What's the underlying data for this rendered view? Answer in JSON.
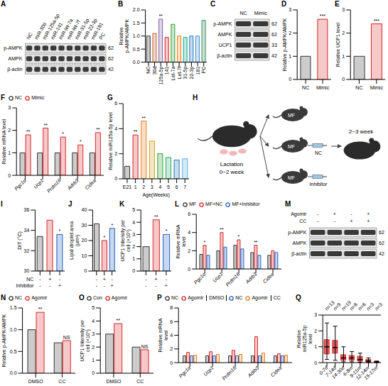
{
  "chart_data": [
    {
      "panel": "B",
      "type": "bar",
      "y_label": "Relative p-AMPK/AMPK",
      "categories": [
        "NC",
        "30d",
        "125a-5p",
        "141",
        "Let-7a",
        "Let-7f",
        "31-5p",
        "22-3p",
        "181",
        "PC"
      ],
      "values": [
        1.0,
        1.1,
        1.65,
        0.95,
        1.45,
        1.0,
        0.95,
        1.0,
        1.0,
        1.6
      ],
      "colors": [
        "#333333",
        "#c0622a",
        "#7b5ea7",
        "#d62728",
        "#2ca02c",
        "#ff7f0e",
        "#17a589",
        "#1f77b4",
        "#3e8ed0",
        "#2e8b57"
      ],
      "significance": [
        null,
        null,
        "**",
        null,
        null,
        null,
        null,
        null,
        null,
        null
      ],
      "ylim": [
        0,
        2
      ],
      "yticks": [
        {
          "value": 0,
          "label": "0.0"
        },
        {
          "value": 0.5,
          "label": "0.5"
        },
        {
          "value": 1,
          "label": "1.0"
        },
        {
          "value": 1.5,
          "label": "1.5"
        },
        {
          "value": 2,
          "label": "2.0"
        }
      ]
    },
    {
      "panel": "D",
      "type": "bar",
      "y_label": "Relative p-AMPK/AMPK",
      "categories": [
        "NC",
        "Mimic"
      ],
      "values": [
        1.0,
        2.6
      ],
      "colors": [
        "#333333",
        "#d62728"
      ],
      "significance": [
        null,
        "***"
      ],
      "ylim": [
        0,
        3
      ],
      "yticks": [
        0,
        1,
        2,
        3
      ]
    },
    {
      "panel": "E",
      "type": "bar",
      "y_label": "Relative UCP1 level",
      "categories": [
        "NC",
        "Mimic"
      ],
      "values": [
        1.0,
        2.4
      ],
      "colors": [
        "#333333",
        "#d62728"
      ],
      "significance": [
        null,
        "***"
      ],
      "ylim": [
        0,
        3
      ],
      "yticks": [
        0,
        1,
        2,
        3
      ]
    },
    {
      "panel": "F",
      "type": "bar",
      "y_label": "Relative mRNA level",
      "categories": [
        "Pgc1α",
        "Ucp1",
        "Prdm16",
        "Adrb3",
        "Cidea"
      ],
      "series": [
        {
          "name": "NC",
          "color": "#333333",
          "values": [
            1,
            1,
            1,
            1,
            1
          ]
        },
        {
          "name": "Mimic",
          "color": "#d62728",
          "values": [
            1.8,
            2.1,
            1.7,
            1.35,
            1.9
          ],
          "significance": [
            "**",
            "**",
            "*",
            "*",
            "**"
          ]
        }
      ],
      "legend": "top",
      "ylim": [
        0,
        3
      ],
      "yticks": [
        0,
        1,
        2,
        3
      ]
    },
    {
      "panel": "G",
      "type": "bar",
      "y_label": "Relative miR125a-5p level",
      "x_label": "Age(Weeks)",
      "categories": [
        "E21",
        "1",
        "2",
        "3",
        "4",
        "5",
        "6",
        "7"
      ],
      "values": [
        1.0,
        3.5,
        4.6,
        3.0,
        2.0,
        1.7,
        1.5,
        1.6
      ],
      "colors": [
        "#333333",
        "#d62728",
        "#e67e22",
        "#d4a017",
        "#2ca02c",
        "#27ae60",
        "#1f77b4",
        "#5dade2"
      ],
      "significance": [
        null,
        "**",
        "**",
        null,
        null,
        null,
        null,
        null
      ],
      "ylim": [
        0,
        6
      ],
      "yticks": [
        0,
        2,
        4,
        6
      ]
    },
    {
      "panel": "I",
      "type": "bar",
      "y_label": "DIT (°C)",
      "categories": [
        null,
        null,
        null
      ],
      "conditions": [
        {
          "name": "NC",
          "signs": [
            "-",
            "+",
            "-"
          ]
        },
        {
          "name": "Inhibitor",
          "signs": [
            "-",
            "-",
            "+"
          ]
        }
      ],
      "values": [
        33.4,
        35.0,
        33.6
      ],
      "colors": [
        "#333333",
        "#d62728",
        "#1f5fbf"
      ],
      "significance": [
        null,
        null,
        "*"
      ],
      "ylim": [
        30,
        36
      ],
      "yticks": [
        30,
        32,
        34,
        36
      ]
    },
    {
      "panel": "J",
      "type": "bar",
      "y_label": "Lipid droplet area (μm²)",
      "categories": [
        null,
        null,
        null
      ],
      "conditions": [
        {
          "signs": [
            "-",
            "+",
            "-"
          ]
        },
        {
          "signs": [
            "-",
            "-",
            "+"
          ]
        }
      ],
      "values": [
        31,
        20,
        28
      ],
      "colors": [
        "#333333",
        "#d62728",
        "#1f5fbf"
      ],
      "significance": [
        null,
        "*",
        "*"
      ],
      "ylim": [
        0,
        40
      ],
      "yticks": [
        0,
        10,
        20,
        30,
        40
      ]
    },
    {
      "panel": "K",
      "type": "bar",
      "y_label": "UCP1 Intensity per cell (×10⁵)",
      "categories": [
        null,
        null,
        null
      ],
      "conditions": [
        {
          "signs": [
            "-",
            "+",
            "-"
          ]
        },
        {
          "signs": [
            "-",
            "-",
            "+"
          ]
        }
      ],
      "values": [
        2.0,
        4.2,
        3.0
      ],
      "colors": [
        "#333333",
        "#d62728",
        "#1f5fbf"
      ],
      "significance": [
        null,
        "**",
        "*"
      ],
      "ylim": [
        0,
        5
      ],
      "yticks": [
        0,
        1,
        2,
        3,
        4,
        5
      ]
    },
    {
      "panel": "L",
      "type": "bar",
      "y_label": "Relative mRNA level",
      "categories": [
        "Pgc1α",
        "Ucp1",
        "Prdm16",
        "Adrb3",
        "Cidea"
      ],
      "series": [
        {
          "name": "MF",
          "color": "#333333",
          "values": [
            1.6,
            2.0,
            2.6,
            1.8,
            1.5
          ]
        },
        {
          "name": "MF+NC",
          "color": "#d62728",
          "values": [
            2.6,
            4.0,
            3.2,
            2.6,
            2.0
          ],
          "significance": [
            "*",
            "**",
            "*",
            "**",
            null
          ]
        },
        {
          "name": "MF+Inhibitor",
          "color": "#1f5fbf",
          "values": [
            1.5,
            2.4,
            2.2,
            1.5,
            1.8
          ]
        }
      ],
      "legend": "top",
      "ylim": [
        0,
        6
      ],
      "yticks": [
        0,
        2,
        4,
        6
      ]
    },
    {
      "panel": "N",
      "type": "bar",
      "y_label": "Relative p-AMPK/AMPK",
      "categories": [
        "DMSO",
        "CC"
      ],
      "series": [
        {
          "name": "NC",
          "color": "#333333",
          "values": [
            1.0,
            0.7
          ]
        },
        {
          "name": "Agomir",
          "color": "#d62728",
          "values": [
            1.4,
            0.75
          ],
          "significance": [
            "**",
            "NS"
          ]
        }
      ],
      "legend": "top",
      "ylim": [
        0,
        1.5
      ],
      "yticks": [
        {
          "value": 0,
          "label": "0.0"
        },
        {
          "value": 0.5,
          "label": "0.5"
        },
        {
          "value": 1,
          "label": "1.0"
        },
        {
          "value": 1.5,
          "label": "1.5"
        }
      ]
    },
    {
      "panel": "O",
      "type": "bar",
      "y_label": "UCP1 Intensity per cell (×10⁵)",
      "categories": [
        "DMSO",
        "CC"
      ],
      "series": [
        {
          "name": "Con",
          "color": "#333333",
          "values": [
            3.0,
            2.0
          ]
        },
        {
          "name": "Agomir",
          "color": "#d62728",
          "values": [
            3.8,
            1.8
          ],
          "significance": [
            "**",
            "NS"
          ]
        }
      ],
      "legend": "top",
      "ylim": [
        0,
        5
      ],
      "yticks": [
        0,
        1,
        2,
        3,
        4,
        5
      ]
    },
    {
      "panel": "P",
      "type": "bar",
      "y_label": "Relative mRNA level",
      "categories": [
        "Pgc1α",
        "Ucp1",
        "Prdm16",
        "Adrb3",
        "Cidea"
      ],
      "series": [
        {
          "name": "NC",
          "group": "DMSO",
          "color": "#333333",
          "values": [
            1,
            1,
            1,
            1,
            1
          ]
        },
        {
          "name": "Agomir",
          "group": "DMSO",
          "color": "#d62728",
          "values": [
            1.5,
            1.6,
            1.8,
            3.8,
            1.3
          ]
        },
        {
          "name": "NC",
          "group": "CC",
          "color": "#1f5fbf",
          "values": [
            1,
            1,
            1,
            1,
            1
          ]
        },
        {
          "name": "Agomir",
          "group": "CC",
          "color": "#e67e22",
          "values": [
            1.1,
            1.2,
            1.2,
            1.4,
            1.1
          ]
        }
      ],
      "legend": "top",
      "ylim": [
        0,
        8
      ],
      "yticks": [
        0,
        2,
        4,
        6,
        8
      ]
    },
    {
      "panel": "Q",
      "type": "box",
      "y_label": "Relative miR125a-5p level",
      "categories": [
        "0-7d",
        "7-14d",
        "14-30d",
        "6-8m",
        "9-11m",
        "12-14m",
        "15-17m"
      ],
      "n_labels": [
        "n=13",
        "n=9",
        "n=19",
        "n=6",
        "n=6",
        "n=3",
        "n=3"
      ],
      "boxes": [
        {
          "min": 0.2,
          "q1": 0.55,
          "median": 1.0,
          "q3": 1.45,
          "max": 2.5
        },
        {
          "min": 0.15,
          "q1": 0.6,
          "median": 0.95,
          "q3": 1.4,
          "max": 2.3
        },
        {
          "min": 0.05,
          "q1": 0.15,
          "median": 0.3,
          "q3": 0.5,
          "max": 1.0
        },
        {
          "min": 0.05,
          "q1": 0.15,
          "median": 0.3,
          "q3": 0.45,
          "max": 0.7
        },
        {
          "min": 0.02,
          "q1": 0.1,
          "median": 0.2,
          "q3": 0.4,
          "max": 0.6
        },
        {
          "min": 0.02,
          "q1": 0.05,
          "median": 0.1,
          "q3": 0.2,
          "max": 0.3
        },
        {
          "min": 0.01,
          "q1": 0.03,
          "median": 0.05,
          "q3": 0.08,
          "max": 0.1
        }
      ],
      "color": "#d62728",
      "ylim": [
        0,
        3
      ],
      "yticks": [
        0,
        1,
        2,
        3
      ]
    }
  ],
  "blots": [
    {
      "panel": "A",
      "lanes": [
        "NC",
        "miR-30d",
        "miR-125a-5p",
        "miR-141",
        "miR-let-7a",
        "miR-let-7f",
        "miR-31-5p",
        "miR-22-3p",
        "miR-181",
        "PC"
      ],
      "rows": [
        {
          "name": "p-AMPK",
          "kda": 62
        },
        {
          "name": "AMPK",
          "kda": 62
        },
        {
          "name": "β-actin",
          "kda": 42
        }
      ]
    },
    {
      "panel": "C",
      "lanes": [
        "NC",
        "Mimic"
      ],
      "rows": [
        {
          "name": "p-AMPK",
          "kda": 62
        },
        {
          "name": "AMPK",
          "kda": 62
        },
        {
          "name": "UCP1",
          "kda": 33
        },
        {
          "name": "β-actin",
          "kda": 42
        }
      ]
    },
    {
      "panel": "M",
      "conditions": [
        {
          "name": "Agomir",
          "signs": [
            "-",
            "+",
            "-",
            "+"
          ]
        },
        {
          "name": "CC",
          "signs": [
            "-",
            "-",
            "+",
            "+"
          ]
        }
      ],
      "rows": [
        {
          "name": "p-AMPK",
          "kda": 62
        },
        {
          "name": "AMPK",
          "kda": 62
        },
        {
          "name": "β-actin",
          "kda": 42
        }
      ]
    }
  ],
  "diagram": {
    "panel": "H",
    "lactation": "Lactation",
    "period_1": "0~2 week",
    "period_2": "2~3 week",
    "groups": [
      {
        "label": "MF"
      },
      {
        "label": "MF",
        "treatment": "NC"
      },
      {
        "label": "MF",
        "treatment": "Inhibitor"
      }
    ]
  }
}
